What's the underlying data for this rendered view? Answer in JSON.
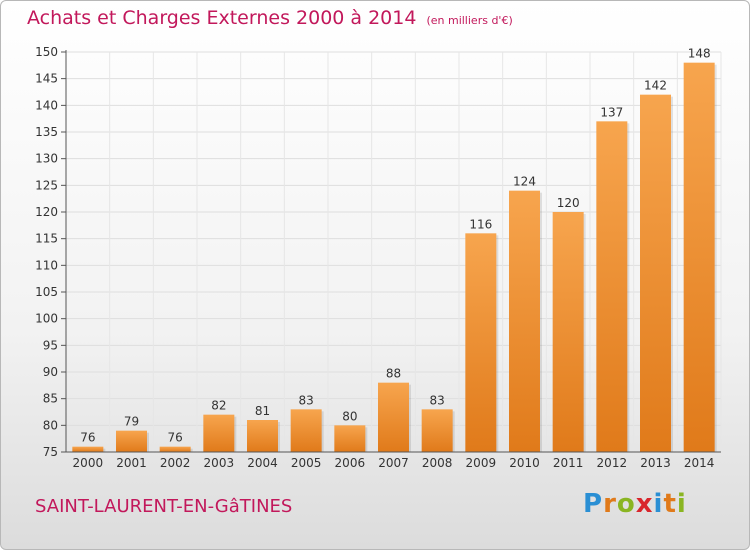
{
  "header": {
    "title": "Achats et Charges Externes 2000 à 2014",
    "unit": "(en milliers d'€)"
  },
  "footer": {
    "commune": "SAINT-LAURENT-EN-GâTINES",
    "logo_letters": [
      "P",
      "r",
      "o",
      "x",
      "i",
      "t",
      "i"
    ],
    "logo_colors": [
      "#2a8fd4",
      "#e07a1a",
      "#8ab522",
      "#d9262c",
      "#2a8fd4",
      "#e07a1a",
      "#8ab522"
    ]
  },
  "chart_data": {
    "type": "bar",
    "categories": [
      "2000",
      "2001",
      "2002",
      "2003",
      "2004",
      "2005",
      "2006",
      "2007",
      "2008",
      "2009",
      "2010",
      "2011",
      "2012",
      "2013",
      "2014"
    ],
    "values": [
      76,
      79,
      76,
      82,
      81,
      83,
      80,
      88,
      83,
      116,
      124,
      120,
      137,
      142,
      148
    ],
    "ylim": [
      75,
      150
    ],
    "yticks": [
      75,
      80,
      85,
      90,
      95,
      100,
      105,
      110,
      115,
      120,
      125,
      130,
      135,
      140,
      145,
      150
    ],
    "grid": true,
    "bar_color_top": "#f7a54e",
    "bar_color_bottom": "#e07a1a"
  }
}
